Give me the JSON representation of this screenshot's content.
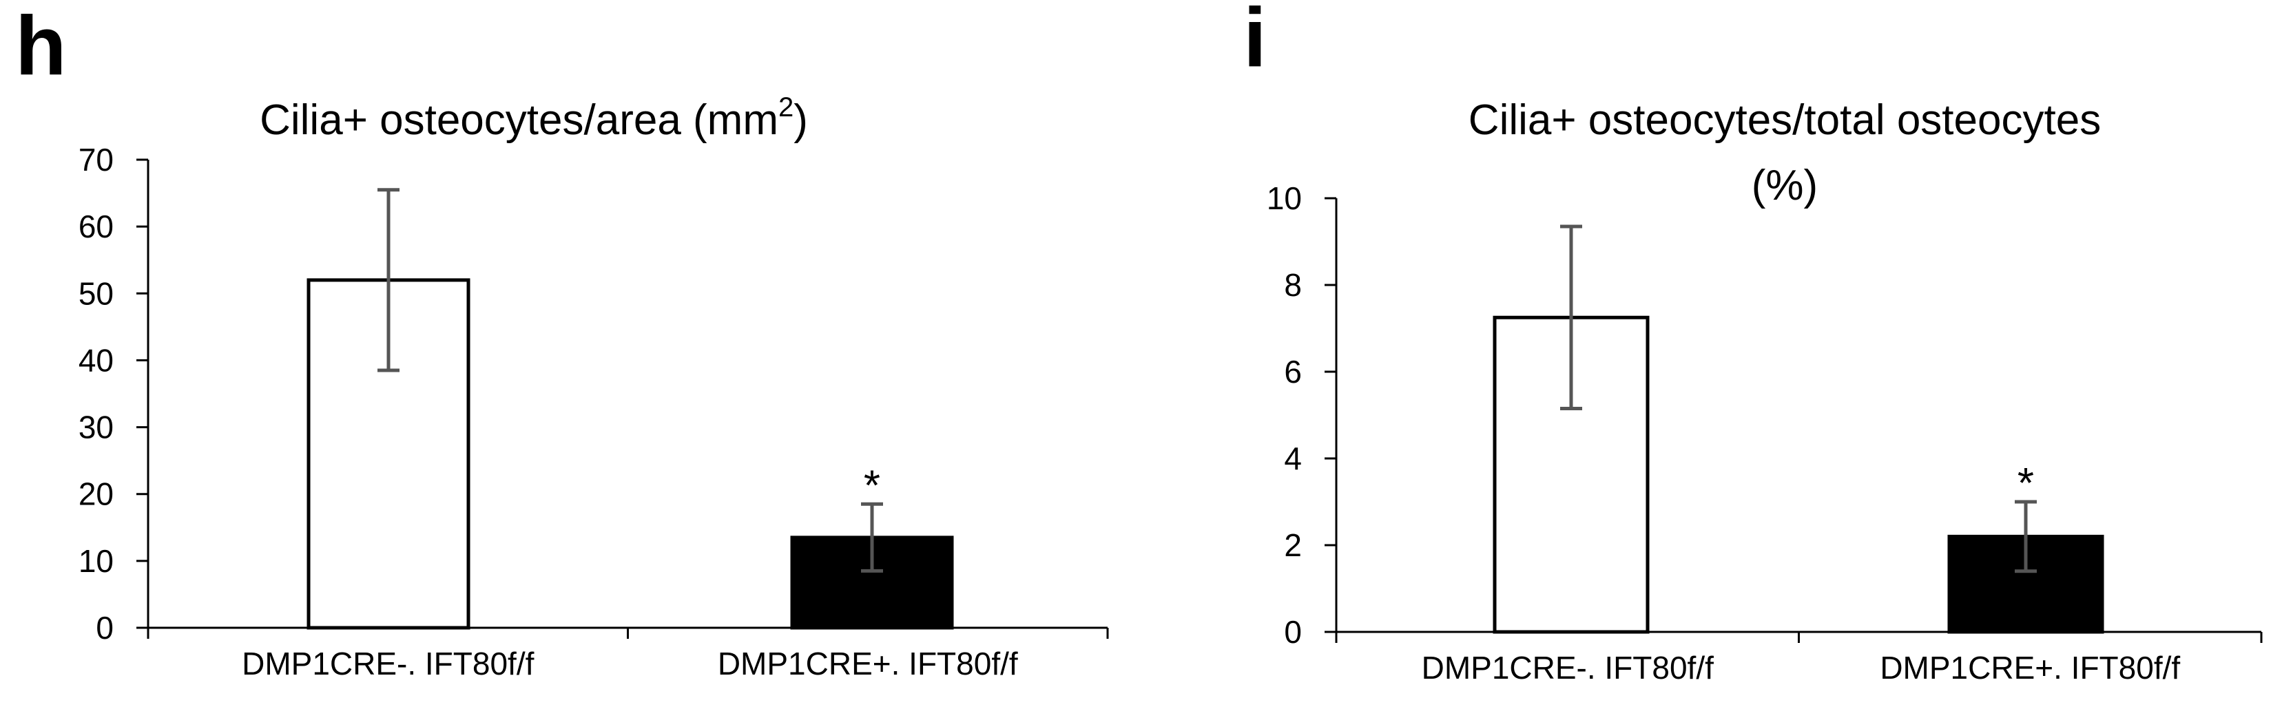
{
  "chart_data": [
    {
      "type": "bar",
      "panel_label": "h",
      "title": "Cilia+ osteocytes/area (mm",
      "title_sup": "2",
      "title_end": ")",
      "xlabel": "",
      "ylabel": "",
      "categories": [
        "DMP1CRE-. IFT80f/f",
        "DMP1CRE+. IFT80f/f"
      ],
      "values": [
        52,
        13.5
      ],
      "errors": [
        13.5,
        5
      ],
      "bar_colors": [
        "#ffffff",
        "#000000"
      ],
      "annotations": [
        "",
        "*"
      ],
      "ylim": [
        0,
        70
      ],
      "yticks": [
        0,
        10,
        20,
        30,
        40,
        50,
        60,
        70
      ],
      "grid": false,
      "legend": "none"
    },
    {
      "type": "bar",
      "panel_label": "i",
      "title": "Cilia+ osteocytes/total osteocytes",
      "title_line2": "(%)",
      "xlabel": "",
      "ylabel": "",
      "categories": [
        "DMP1CRE-. IFT80f/f",
        "DMP1CRE+. IFT80f/f"
      ],
      "values": [
        7.25,
        2.2
      ],
      "errors": [
        2.1,
        0.8
      ],
      "bar_colors": [
        "#ffffff",
        "#000000"
      ],
      "annotations": [
        "",
        "*"
      ],
      "ylim": [
        0,
        10
      ],
      "yticks": [
        0,
        2,
        4,
        6,
        8,
        10
      ],
      "grid": false,
      "legend": "none"
    }
  ]
}
